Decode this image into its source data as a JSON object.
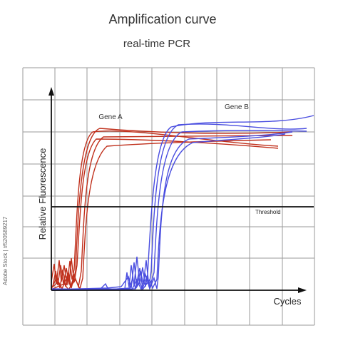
{
  "header": {
    "title": "Amplification curve",
    "subtitle": "real-time PCR"
  },
  "diagram": {
    "y_axis_label": "Relative Fluorescence",
    "x_axis_label": "Cycles",
    "curve_labels": [
      "Gene A",
      "Gene B"
    ],
    "threshold_label": "Threshold"
  },
  "watermark": "Adobe Stock | #520589217"
}
